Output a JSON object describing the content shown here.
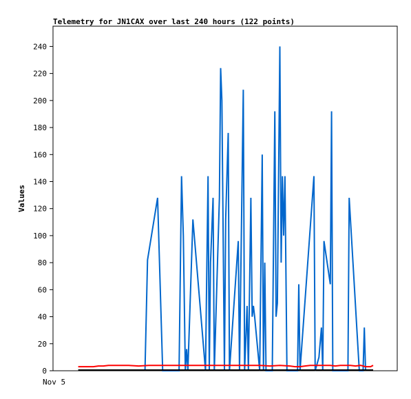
{
  "chart_data": {
    "type": "line",
    "title": "Telemetry for JN1CAX over last 240 hours (122 points)",
    "xlabel": "",
    "ylabel": "Values",
    "x_tick_labels": [
      "Nov 5"
    ],
    "ylim": [
      0,
      255
    ],
    "y_ticks": [
      0,
      20,
      40,
      60,
      80,
      100,
      120,
      140,
      160,
      180,
      200,
      220,
      240
    ],
    "grid": false,
    "legend": "none",
    "colors": {
      "series_blue": "#0066cc",
      "series_red": "#ff0000",
      "series_black": "#000000"
    },
    "series": [
      {
        "color": "#0066cc",
        "points": [
          [
            36.5,
            0
          ],
          [
            37.5,
            82
          ],
          [
            41.5,
            128
          ],
          [
            43.5,
            0
          ],
          [
            50,
            0
          ],
          [
            51,
            144
          ],
          [
            51.7,
            100
          ],
          [
            52.5,
            0
          ],
          [
            53,
            16
          ],
          [
            53.5,
            0
          ],
          [
            55.5,
            112
          ],
          [
            60.5,
            0
          ],
          [
            61,
            72
          ],
          [
            61.5,
            144
          ],
          [
            62,
            0
          ],
          [
            62.5,
            80
          ],
          [
            63.5,
            128
          ],
          [
            64,
            0
          ],
          [
            66,
            128
          ],
          [
            66.5,
            224
          ],
          [
            67,
            200
          ],
          [
            68,
            0
          ],
          [
            68.5,
            112
          ],
          [
            69.5,
            176
          ],
          [
            70,
            0
          ],
          [
            73.5,
            96
          ],
          [
            74,
            0
          ],
          [
            75.5,
            208
          ],
          [
            76,
            0
          ],
          [
            77,
            48
          ],
          [
            77.5,
            0
          ],
          [
            78.5,
            128
          ],
          [
            79,
            40
          ],
          [
            79.5,
            48
          ],
          [
            80,
            40
          ],
          [
            82,
            0
          ],
          [
            83,
            160
          ],
          [
            83.5,
            0
          ],
          [
            84,
            80
          ],
          [
            84.5,
            0
          ],
          [
            87,
            0
          ],
          [
            88,
            192
          ],
          [
            88.5,
            40
          ],
          [
            89,
            50
          ],
          [
            90,
            240
          ],
          [
            90.5,
            80
          ],
          [
            91,
            144
          ],
          [
            91.5,
            100
          ],
          [
            92,
            144
          ],
          [
            92.8,
            0
          ],
          [
            97,
            0
          ],
          [
            97.5,
            64
          ],
          [
            98,
            0
          ],
          [
            103.5,
            144
          ],
          [
            104,
            0
          ],
          [
            105.5,
            10
          ],
          [
            106.5,
            32
          ],
          [
            107,
            0
          ],
          [
            107.5,
            96
          ],
          [
            110,
            64
          ],
          [
            110.5,
            192
          ],
          [
            111,
            0
          ],
          [
            117,
            0
          ],
          [
            117.5,
            128
          ],
          [
            121.5,
            0
          ],
          [
            123,
            0
          ],
          [
            123.5,
            32
          ],
          [
            124,
            0
          ]
        ]
      },
      {
        "color": "#ff0000",
        "points": [
          [
            10,
            3
          ],
          [
            16,
            3
          ],
          [
            18,
            3.5
          ],
          [
            20,
            3.5
          ],
          [
            22,
            4
          ],
          [
            28,
            4
          ],
          [
            30,
            4
          ],
          [
            34,
            3.5
          ],
          [
            38,
            4
          ],
          [
            40,
            4
          ],
          [
            46,
            4
          ],
          [
            50,
            4
          ],
          [
            54,
            4
          ],
          [
            58,
            4
          ],
          [
            62,
            4
          ],
          [
            66,
            4
          ],
          [
            70,
            4
          ],
          [
            74,
            4
          ],
          [
            78,
            4
          ],
          [
            82,
            4
          ],
          [
            86,
            3.5
          ],
          [
            90,
            4
          ],
          [
            94,
            3.5
          ],
          [
            96,
            3
          ],
          [
            98,
            3
          ],
          [
            100,
            3.5
          ],
          [
            102,
            4
          ],
          [
            106,
            4
          ],
          [
            110,
            4
          ],
          [
            112,
            3.5
          ],
          [
            114,
            4
          ],
          [
            118,
            4
          ],
          [
            120,
            3.5
          ],
          [
            122,
            4
          ],
          [
            124,
            3
          ],
          [
            126,
            3
          ],
          [
            127,
            4
          ]
        ]
      },
      {
        "color": "#000000",
        "points": [
          [
            10,
            0.5
          ],
          [
            127,
            0.5
          ]
        ]
      }
    ]
  }
}
